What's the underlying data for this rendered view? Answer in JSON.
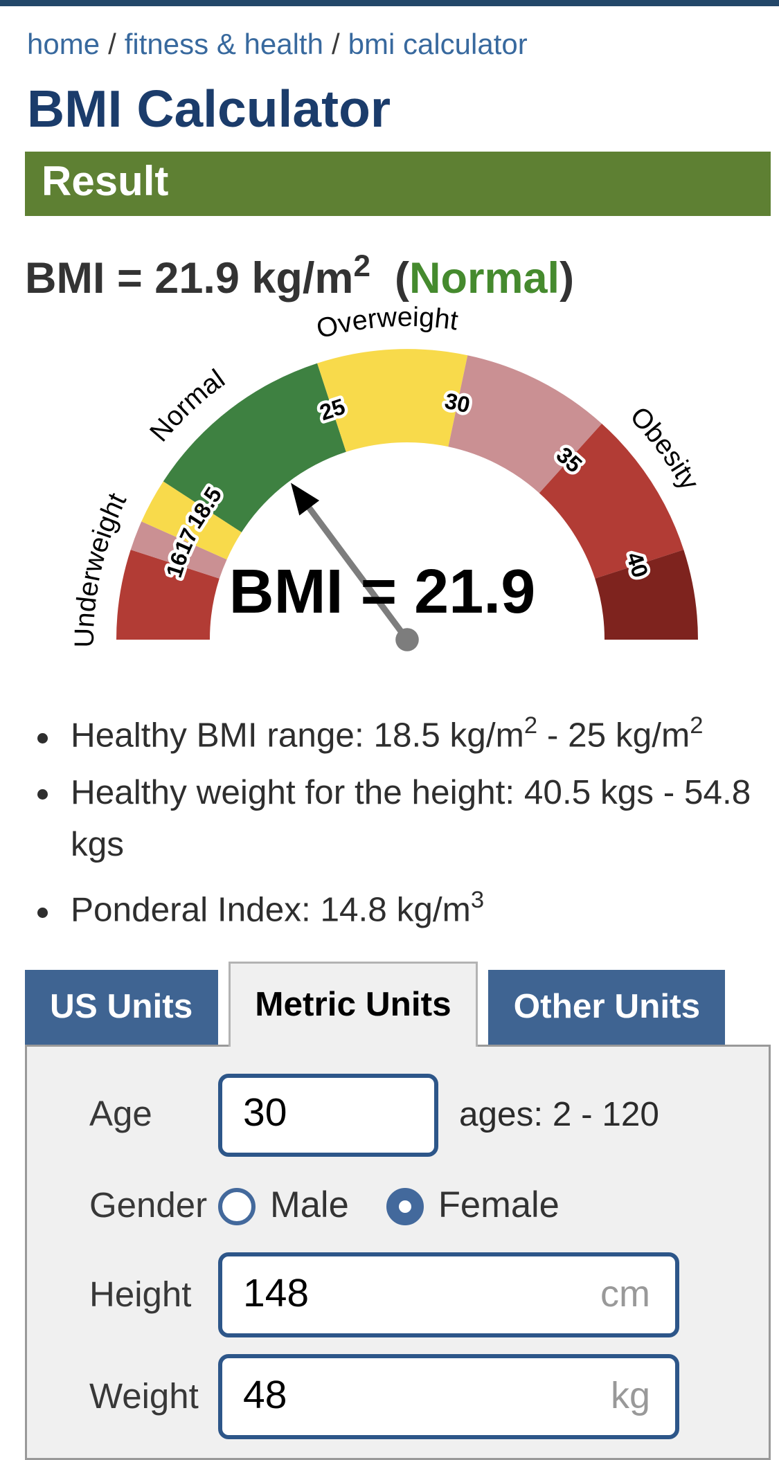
{
  "breadcrumb": {
    "separator": "/",
    "items": [
      "home",
      "fitness & health",
      "bmi calculator"
    ]
  },
  "title": "BMI Calculator",
  "result": {
    "banner": "Result",
    "bmi_prefix": "BMI = 21.9 kg/m",
    "bmi_sup": "2",
    "paren_open": "  (",
    "status": "Normal",
    "paren_close": ")",
    "status_color": "#458a2e",
    "bullets": [
      [
        {
          "t": "Healthy BMI range: 18.5 kg/m"
        },
        {
          "sup": "2"
        },
        {
          "t": " - 25 kg/m"
        },
        {
          "sup": "2"
        }
      ],
      [
        {
          "t": "Healthy weight for the height: 40.5 kgs - 54.8 kgs"
        }
      ],
      [
        {
          "t": "Ponderal Index: 14.8 kg/m"
        },
        {
          "sup": "3"
        }
      ]
    ]
  },
  "chart_data": {
    "type": "gauge",
    "min": 13,
    "max": 43,
    "value": 21.9,
    "center_label": "BMI = 21.9",
    "segments": [
      {
        "from": 13,
        "to": 16,
        "color": "#b23c35"
      },
      {
        "from": 16,
        "to": 17,
        "color": "#ca9093"
      },
      {
        "from": 17,
        "to": 18.5,
        "color": "#f8da4b"
      },
      {
        "from": 18.5,
        "to": 25,
        "color": "#3e8141"
      },
      {
        "from": 25,
        "to": 30,
        "color": "#f8da4b"
      },
      {
        "from": 30,
        "to": 35,
        "color": "#ca9093"
      },
      {
        "from": 35,
        "to": 40,
        "color": "#b23c35"
      },
      {
        "from": 40,
        "to": 43,
        "color": "#7e231e"
      }
    ],
    "ticks": [
      "16",
      "17",
      "18.5",
      "25",
      "30",
      "35",
      "40"
    ],
    "category_labels": [
      {
        "text": "Underweight",
        "at": 15.1
      },
      {
        "text": "Normal",
        "at": 20.8
      },
      {
        "text": "Overweight",
        "at": 27.4
      },
      {
        "text": "Obesity",
        "at": 36.9
      }
    ],
    "needle_color": "#7d7d7d",
    "arrow_color": "#000000"
  },
  "tabs": [
    {
      "label": "US Units",
      "active": false
    },
    {
      "label": "Metric Units",
      "active": true
    },
    {
      "label": "Other Units",
      "active": false
    }
  ],
  "form": {
    "age": {
      "label": "Age",
      "value": "30",
      "hint": "ages: 2 - 120"
    },
    "gender": {
      "label": "Gender",
      "options": [
        {
          "label": "Male",
          "selected": false
        },
        {
          "label": "Female",
          "selected": true
        }
      ]
    },
    "height": {
      "label": "Height",
      "value": "148",
      "unit": "cm"
    },
    "weight": {
      "label": "Weight",
      "value": "48",
      "unit": "kg"
    }
  },
  "colors": {
    "topbar": "#234769",
    "link_blue": "#38699e",
    "title_navy": "#1b3c6b",
    "banner_green": "#5e8033",
    "tab_blue": "#3f6492",
    "input_border": "#2d5689",
    "radio_blue": "#43699c"
  }
}
